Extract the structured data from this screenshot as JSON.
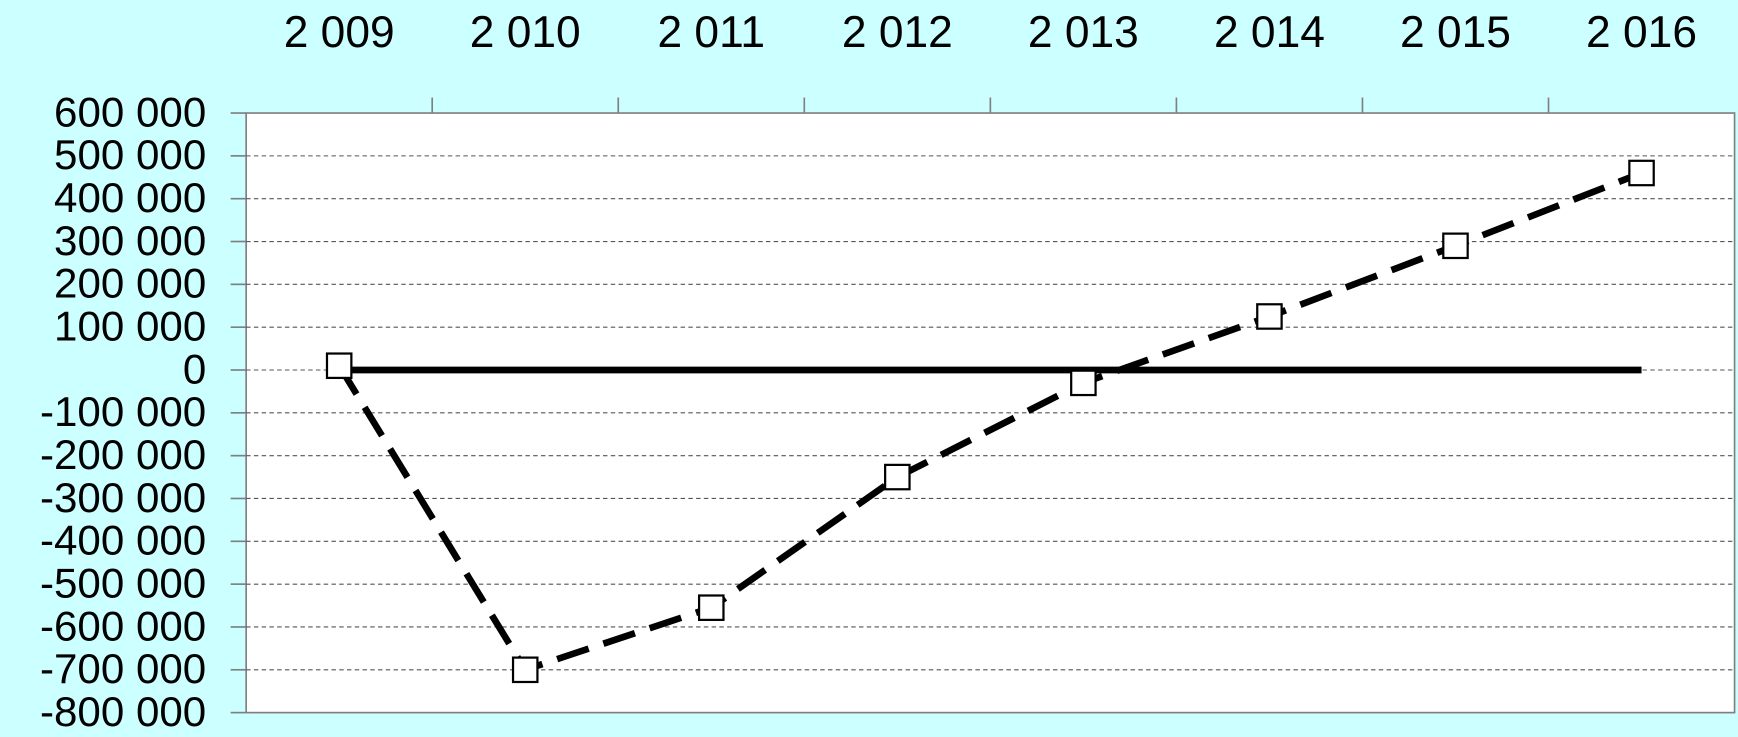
{
  "chart_data": {
    "type": "line",
    "categories": [
      "2 009",
      "2 010",
      "2 011",
      "2 012",
      "2 013",
      "2 014",
      "2 015",
      "2 016"
    ],
    "series": [
      {
        "color": "#000000",
        "style": "dashed",
        "marker": "square",
        "values": [
          10000,
          -700000,
          -555000,
          -250000,
          -30000,
          125000,
          290000,
          460000
        ]
      },
      {
        "color": "#000000",
        "style": "solid",
        "values": [
          0,
          0,
          0,
          0,
          0,
          0,
          0,
          0
        ]
      }
    ],
    "ylim": [
      -800000,
      600000
    ],
    "yticks": [
      {
        "value": -800000,
        "label": "-800 000"
      },
      {
        "value": -700000,
        "label": "-700 000"
      },
      {
        "value": -600000,
        "label": "-600 000"
      },
      {
        "value": -500000,
        "label": "-500 000"
      },
      {
        "value": -400000,
        "label": "-400 000"
      },
      {
        "value": -300000,
        "label": "-300 000"
      },
      {
        "value": -200000,
        "label": "-200 000"
      },
      {
        "value": -100000,
        "label": "-100 000"
      },
      0,
      {
        "value": 100000,
        "label": "100 000"
      },
      {
        "value": 200000,
        "label": "200 000"
      },
      {
        "value": 300000,
        "label": "300 000"
      },
      {
        "value": 400000,
        "label": "400 000"
      },
      {
        "value": 500000,
        "label": "500 000"
      },
      {
        "value": 600000,
        "label": "600 000"
      }
    ],
    "grid": true,
    "xaxis_position": "top"
  }
}
